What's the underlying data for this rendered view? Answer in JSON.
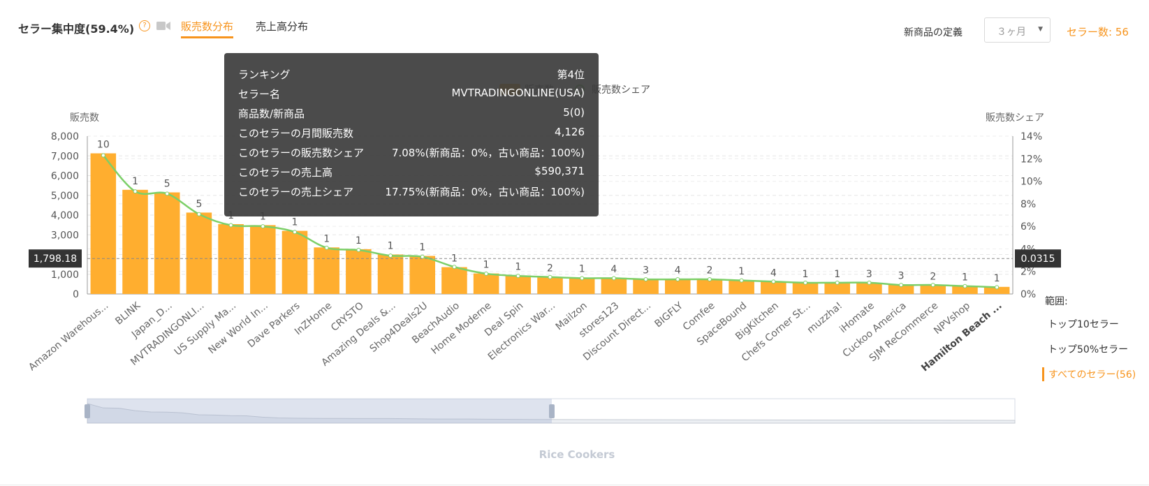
{
  "header": {
    "title": "セラー集中度(59.4%)",
    "help_glyph": "?",
    "tabs": [
      {
        "label": "販売数分布",
        "active": true
      },
      {
        "label": "売上高分布",
        "active": false
      }
    ],
    "new_def_label": "新商品の定義",
    "period_value": "３ヶ月",
    "seller_count": "セラー数: 56"
  },
  "tooltip": {
    "rows": [
      {
        "label": "ランキング",
        "value": "第4位"
      },
      {
        "label": "セラー名",
        "value": "MVTRADINGONLINE(USA)"
      },
      {
        "label": "商品数/新商品",
        "value": "5(0)"
      },
      {
        "label": "このセラーの月間販売数",
        "value": "4,126"
      },
      {
        "label": "このセラーの販売数シェア",
        "value": "7.08%(新商品：0%，古い商品：100%)"
      },
      {
        "label": "このセラーの売上高",
        "value": "$590,371"
      },
      {
        "label": "このセラーの売上シェア",
        "value": "17.75%(新商品：0%，古い商品：100%)"
      }
    ]
  },
  "range": {
    "label": "範囲:",
    "options": [
      {
        "label": "トップ10セラー",
        "active": false
      },
      {
        "label": "トップ50%セラー",
        "active": false
      },
      {
        "label": "すべてのセラー(56)",
        "active": true
      }
    ]
  },
  "chart_data": {
    "type": "bar",
    "title": "",
    "ylabel": "販売数",
    "y2label": "販売数シェア",
    "ylim": [
      0,
      8000
    ],
    "y2lim": [
      0,
      14
    ],
    "yticks": [
      "0",
      "1,000",
      "2,000",
      "3,000",
      "4,000",
      "5,000",
      "6,000",
      "7,000",
      "8,000"
    ],
    "y2ticks": [
      "0%",
      "2%",
      "4%",
      "6%",
      "8%",
      "10%",
      "12%",
      "14%"
    ],
    "legend": [
      {
        "name": "販売数",
        "color": "#ffae2f"
      },
      {
        "name": "販売数シェア",
        "color": "#7ccf68"
      }
    ],
    "crosshair": {
      "y_value": "1,798.18",
      "y2_value": "0.0315"
    },
    "highlighted_category": "MVTRADINGONLINE(USA)",
    "categories": [
      "Amazon Warehous...",
      "BLINK",
      "Japan_D...",
      "MVTRADINGONLI...",
      "US Supply Ma...",
      "New World In...",
      "Dave Parkers",
      "InZHome",
      "CRYSTO",
      "Amazing Deals &...",
      "Shop4Deals2U",
      "BeachAudio",
      "Home Moderne",
      "Deal Spin",
      "Electronics War...",
      "Mailzon",
      "stores123",
      "Discount Direct...",
      "BIGFLY",
      "Comfee",
      "SpaceBound",
      "BigKitchen",
      "Chefs Corner St...",
      "muzzha!",
      "iHomate",
      "Cuckoo America",
      "SJM ReCommerce",
      "NPVshop",
      "Hamilton Beach ..."
    ],
    "bold_categories": [
      "Hamilton Beach ..."
    ],
    "series": [
      {
        "name": "販売数",
        "values": [
          7130,
          5280,
          5150,
          4126,
          3540,
          3490,
          3200,
          2360,
          2270,
          2000,
          1930,
          1360,
          1040,
          940,
          860,
          830,
          820,
          760,
          760,
          760,
          700,
          620,
          570,
          570,
          560,
          470,
          440,
          400,
          360
        ]
      },
      {
        "name": "販売数シェア",
        "values": [
          12.3,
          9.1,
          8.9,
          7.08,
          6.1,
          6.0,
          5.5,
          4.1,
          3.9,
          3.4,
          3.3,
          2.4,
          1.8,
          1.6,
          1.5,
          1.4,
          1.4,
          1.3,
          1.3,
          1.3,
          1.2,
          1.1,
          1.0,
          1.0,
          1.0,
          0.8,
          0.8,
          0.7,
          0.6
        ]
      },
      {
        "name": "商品数",
        "values": [
          10,
          1,
          5,
          5,
          1,
          1,
          1,
          1,
          1,
          1,
          1,
          1,
          1,
          1,
          2,
          1,
          4,
          3,
          4,
          2,
          1,
          4,
          1,
          1,
          3,
          3,
          2,
          1,
          1
        ]
      }
    ],
    "slider_caption": "Rice Cookers",
    "grid": true
  }
}
